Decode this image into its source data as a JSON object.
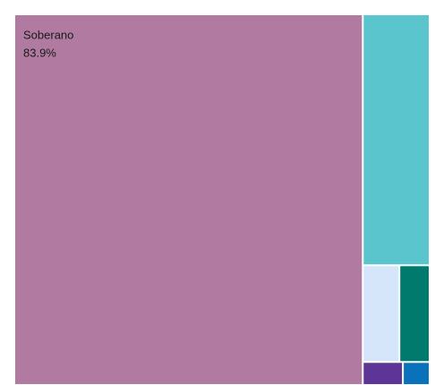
{
  "chart_data": {
    "type": "treemap",
    "categories": [
      "Soberano",
      null,
      null,
      null,
      null,
      null
    ],
    "values": [
      83.9,
      10.9,
      2.3,
      1.9,
      0.6,
      0.4
    ],
    "value_labels": [
      "83.9%",
      null,
      null,
      null,
      null,
      null
    ],
    "colors": [
      "#b07aa1",
      "#5bc5cd",
      "#d5e6fb",
      "#007a6c",
      "#5c3596",
      "#0a72ba"
    ]
  }
}
